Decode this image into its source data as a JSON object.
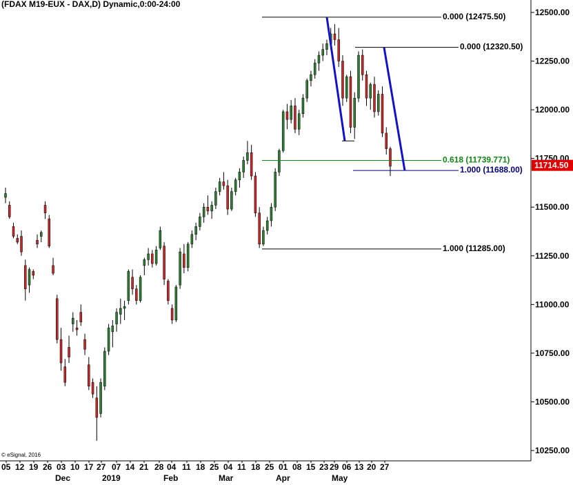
{
  "chart_data": {
    "type": "candlestick",
    "title": "(FDAX M19-EUX - DAX,D) Dynamic,0:00-24:00",
    "copyright": "© eSignal, 2016",
    "ylim": [
      10200,
      12550
    ],
    "y_ticks": [
      "12500.00",
      "12250.00",
      "12000.00",
      "11750.00",
      "11500.00",
      "11250.00",
      "11000.00",
      "10750.00",
      "10500.00",
      "10250.00"
    ],
    "y_tick_values": [
      12500,
      12250,
      12000,
      11750,
      11500,
      11250,
      11000,
      10750,
      10500,
      10250
    ],
    "x_tick_labels": [
      "05",
      "12",
      "19",
      "26",
      "03",
      "10",
      "17",
      "27",
      "07",
      "14",
      "21",
      "28",
      "04",
      "11",
      "18",
      "25",
      "04",
      "11",
      "18",
      "25",
      "01",
      "08",
      "15",
      "23",
      "29",
      "06",
      "13",
      "20",
      "27"
    ],
    "month_labels": [
      "Dec",
      "2019",
      "Feb",
      "Mar",
      "Apr",
      "May"
    ],
    "current_price": {
      "label": "11714.50",
      "value": 11714.5,
      "color": "#e00000"
    },
    "colors": {
      "up": "#2e7d32",
      "down": "#c62828",
      "wick": "#000000",
      "fib_green": "#118811",
      "fib_blue": "#000080",
      "trend_blue": "#1010d0"
    },
    "fib_levels": [
      {
        "label": "0.000 (12475.50)",
        "value": 12475.5,
        "color": "#000000"
      },
      {
        "label": "0.000 (12320.50)",
        "value": 12320.5,
        "color": "#000000"
      },
      {
        "label": "0.618 (11739.771)",
        "value": 11739.771,
        "color": "#118811"
      },
      {
        "label": "1.000 (11688.00)",
        "value": 11688.0,
        "color": "#000080"
      },
      {
        "label": "1.000 (11285.00)",
        "value": 11285.0,
        "color": "#000000"
      }
    ],
    "candles": [
      [
        11550,
        11600,
        11520,
        11570
      ],
      [
        11510,
        11530,
        11440,
        11450
      ],
      [
        11400,
        11420,
        11340,
        11350
      ],
      [
        11340,
        11360,
        11310,
        11320
      ],
      [
        11350,
        11380,
        11250,
        11270
      ],
      [
        11200,
        11230,
        11020,
        11080
      ],
      [
        11100,
        11190,
        11060,
        11180
      ],
      [
        11170,
        11180,
        11130,
        11150
      ],
      [
        11330,
        11360,
        11290,
        11310
      ],
      [
        11350,
        11380,
        11320,
        11370
      ],
      [
        11510,
        11530,
        11440,
        11470
      ],
      [
        11440,
        11460,
        11290,
        11300
      ],
      [
        11200,
        11240,
        11150,
        11160
      ],
      [
        11030,
        11050,
        10800,
        10820
      ],
      [
        10820,
        10880,
        10660,
        10700
      ],
      [
        10680,
        10720,
        10580,
        10600
      ],
      [
        10780,
        10840,
        10700,
        10730
      ],
      [
        10900,
        10960,
        10860,
        10930
      ],
      [
        10880,
        10920,
        10840,
        10870
      ],
      [
        10960,
        11000,
        10890,
        10910
      ],
      [
        10820,
        10850,
        10740,
        10770
      ],
      [
        10690,
        10730,
        10560,
        10580
      ],
      [
        10600,
        10620,
        10520,
        10540
      ],
      [
        10520,
        10580,
        10300,
        10420
      ],
      [
        10440,
        10620,
        10420,
        10600
      ],
      [
        10580,
        10780,
        10560,
        10760
      ],
      [
        10760,
        10900,
        10740,
        10880
      ],
      [
        10860,
        10920,
        10780,
        10890
      ],
      [
        10900,
        10980,
        10860,
        10960
      ],
      [
        10950,
        11030,
        10900,
        10980
      ],
      [
        10980,
        11020,
        10920,
        10990
      ],
      [
        11020,
        11180,
        11000,
        11170
      ],
      [
        11140,
        11180,
        11050,
        11080
      ],
      [
        11080,
        11100,
        11000,
        11020
      ],
      [
        11020,
        11150,
        11010,
        11140
      ],
      [
        11200,
        11240,
        11150,
        11230
      ],
      [
        11230,
        11290,
        11200,
        11260
      ],
      [
        11260,
        11280,
        11190,
        11210
      ],
      [
        11210,
        11300,
        11200,
        11280
      ],
      [
        11290,
        11400,
        11280,
        11380
      ],
      [
        11300,
        11320,
        11100,
        11130
      ],
      [
        11120,
        11130,
        11000,
        11020
      ],
      [
        10980,
        11000,
        10900,
        10920
      ],
      [
        10920,
        11100,
        10910,
        11090
      ],
      [
        11100,
        11290,
        11080,
        11270
      ],
      [
        11260,
        11310,
        11160,
        11190
      ],
      [
        11190,
        11320,
        11170,
        11310
      ],
      [
        11310,
        11380,
        11290,
        11360
      ],
      [
        11360,
        11420,
        11330,
        11400
      ],
      [
        11400,
        11470,
        11380,
        11450
      ],
      [
        11450,
        11520,
        11420,
        11500
      ],
      [
        11500,
        11560,
        11460,
        11480
      ],
      [
        11480,
        11530,
        11440,
        11510
      ],
      [
        11510,
        11600,
        11490,
        11580
      ],
      [
        11580,
        11650,
        11560,
        11630
      ],
      [
        11630,
        11680,
        11590,
        11610
      ],
      [
        11610,
        11640,
        11460,
        11490
      ],
      [
        11490,
        11600,
        11480,
        11580
      ],
      [
        11580,
        11650,
        11560,
        11640
      ],
      [
        11640,
        11700,
        11600,
        11680
      ],
      [
        11680,
        11760,
        11650,
        11740
      ],
      [
        11740,
        11840,
        11720,
        11780
      ],
      [
        11780,
        11820,
        11640,
        11660
      ],
      [
        11660,
        11680,
        11450,
        11470
      ],
      [
        11470,
        11500,
        11290,
        11310
      ],
      [
        11310,
        11400,
        11300,
        11380
      ],
      [
        11380,
        11450,
        11360,
        11430
      ],
      [
        11430,
        11520,
        11400,
        11500
      ],
      [
        11500,
        11700,
        11480,
        11680
      ],
      [
        11680,
        11800,
        11660,
        11790
      ],
      [
        11790,
        12000,
        11780,
        11990
      ],
      [
        11990,
        12030,
        11900,
        11950
      ],
      [
        11950,
        12050,
        11930,
        12020
      ],
      [
        12020,
        12060,
        11880,
        11900
      ],
      [
        11900,
        12000,
        11870,
        11980
      ],
      [
        11980,
        12080,
        11960,
        12060
      ],
      [
        12060,
        12160,
        12040,
        12150
      ],
      [
        12150,
        12200,
        12120,
        12180
      ],
      [
        12180,
        12260,
        12160,
        12240
      ],
      [
        12240,
        12300,
        12200,
        12280
      ],
      [
        12280,
        12340,
        12250,
        12310
      ],
      [
        12310,
        12360,
        12280,
        12340
      ],
      [
        12340,
        12420,
        12310,
        12390
      ],
      [
        12390,
        12440,
        12330,
        12360
      ],
      [
        12360,
        12420,
        12220,
        12250
      ],
      [
        12250,
        12280,
        12020,
        12060
      ],
      [
        12060,
        12180,
        12040,
        12170
      ],
      [
        12170,
        12200,
        11880,
        11910
      ],
      [
        11910,
        12090,
        11850,
        12060
      ],
      [
        12060,
        12300,
        12040,
        12280
      ],
      [
        12280,
        12310,
        12150,
        12180
      ],
      [
        12180,
        12200,
        12020,
        12060
      ],
      [
        12060,
        12140,
        12000,
        12130
      ],
      [
        12130,
        12170,
        11960,
        11990
      ],
      [
        11990,
        12100,
        11970,
        12080
      ],
      [
        12080,
        12120,
        11860,
        11880
      ],
      [
        11880,
        11910,
        11770,
        11800
      ],
      [
        11800,
        11810,
        11660,
        11710
      ]
    ]
  }
}
